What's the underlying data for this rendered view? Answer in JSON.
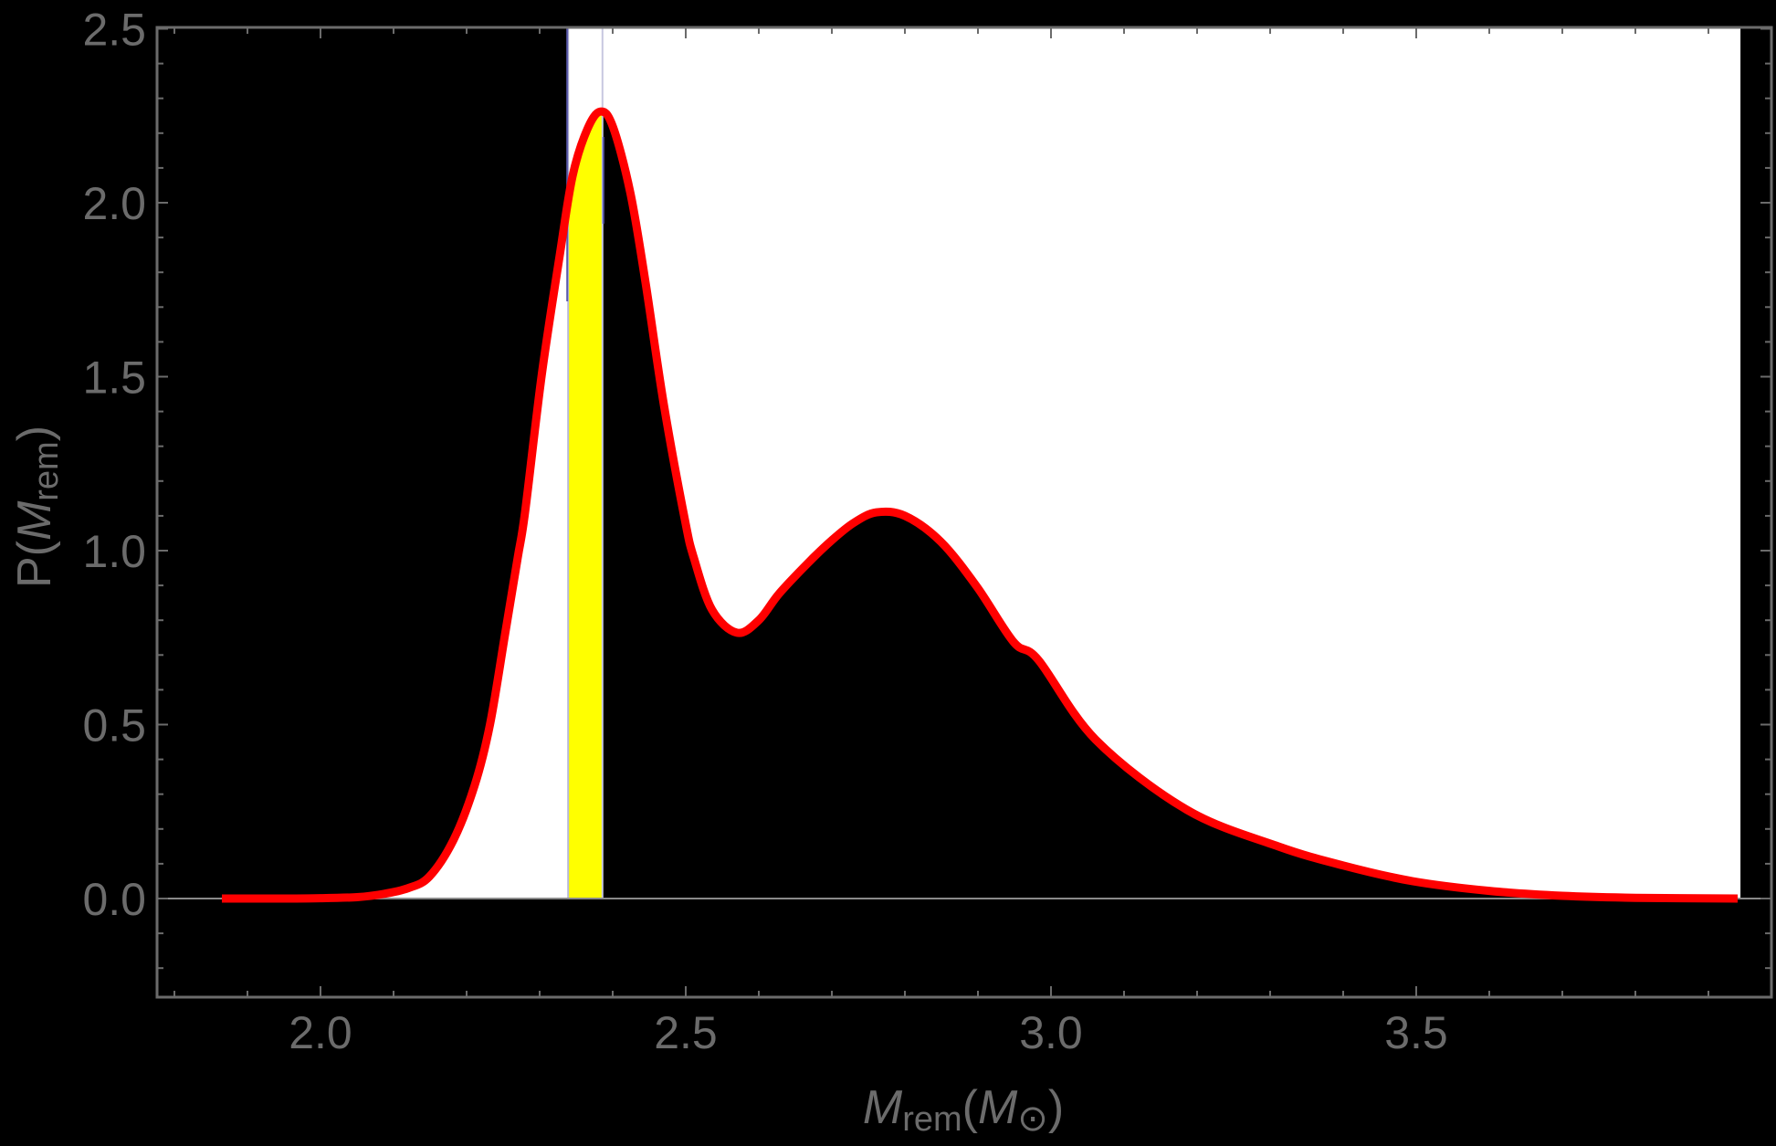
{
  "chart_data": {
    "type": "line",
    "title": "",
    "xlabel": "M_rem(M_⊙)",
    "ylabel": "P(M_rem)",
    "xlabel_parts": {
      "main": "M",
      "sub": "rem",
      "paren_open": "(",
      "unit": "M",
      "unit_sub": "⊙",
      "paren_close": ")"
    },
    "ylabel_parts": {
      "prefix": "P(",
      "main": "M",
      "sub": "rem",
      "suffix": ")"
    },
    "xlim": [
      1.8,
      3.95
    ],
    "ylim": [
      -0.28,
      2.5
    ],
    "x_ticks": [
      {
        "value": 2.0,
        "label": "2.0"
      },
      {
        "value": 2.5,
        "label": "2.5"
      },
      {
        "value": 3.0,
        "label": "3.0"
      },
      {
        "value": 3.5,
        "label": "3.5"
      }
    ],
    "y_ticks": [
      {
        "value": 0.0,
        "label": "0.0"
      },
      {
        "value": 0.5,
        "label": "0.5"
      },
      {
        "value": 1.0,
        "label": "1.0"
      },
      {
        "value": 1.5,
        "label": "1.5"
      },
      {
        "value": 2.0,
        "label": "2.0"
      },
      {
        "value": 2.5,
        "label": "2.5"
      }
    ],
    "grid": false,
    "legend": null,
    "series": [
      {
        "name": "P(M_rem)",
        "color": "#ff0000",
        "x": [
          1.865,
          1.95,
          2.0,
          2.05,
          2.086,
          2.12,
          2.149,
          2.182,
          2.211,
          2.232,
          2.253,
          2.27,
          2.28,
          2.303,
          2.328,
          2.345,
          2.365,
          2.383,
          2.4,
          2.424,
          2.445,
          2.47,
          2.499,
          2.511,
          2.536,
          2.57,
          2.6,
          2.628,
          2.67,
          2.7,
          2.73,
          2.761,
          2.8,
          2.849,
          2.899,
          2.949,
          2.983,
          3.061,
          3.186,
          3.311,
          3.4,
          3.495,
          3.6,
          3.7,
          3.8,
          3.94
        ],
        "values": [
          0.0,
          0.0,
          0.001,
          0.004,
          0.013,
          0.03,
          0.063,
          0.168,
          0.325,
          0.5,
          0.764,
          0.98,
          1.11,
          1.507,
          1.856,
          2.076,
          2.21,
          2.262,
          2.22,
          2.03,
          1.77,
          1.42,
          1.087,
          0.98,
          0.83,
          0.764,
          0.8,
          0.877,
          0.97,
          1.03,
          1.08,
          1.11,
          1.1,
          1.026,
          0.895,
          0.737,
          0.685,
          0.457,
          0.255,
          0.15,
          0.095,
          0.05,
          0.022,
          0.008,
          0.002,
          0.0
        ]
      }
    ],
    "highlight_band": {
      "x_start": 2.339,
      "x_end": 2.386,
      "color": "#ffff00",
      "edge_color": "#5a5aaa"
    },
    "background_regions": [
      {
        "x_start": 1.8,
        "x_end": 2.339,
        "above_curve": "#000000",
        "below_curve": "#ffffff"
      },
      {
        "x_start": 2.386,
        "x_end": 3.944,
        "above_curve": "#ffffff",
        "below_curve": "#000000"
      }
    ],
    "colors": {
      "background": "#000000",
      "axis": "#6b6b6b",
      "curve": "#ff0000",
      "band": "#ffff00"
    }
  }
}
